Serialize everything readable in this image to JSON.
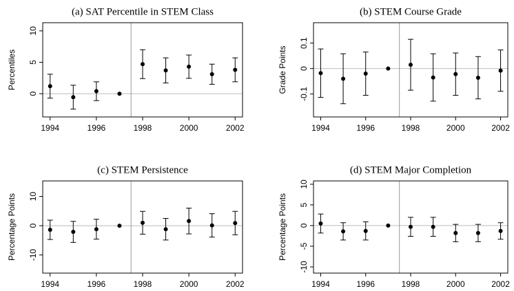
{
  "chart_data": [
    {
      "type": "errorbar",
      "title": "(a) SAT Percentile in STEM Class",
      "y_label": "Percentiles",
      "x": [
        1994,
        1995,
        1996,
        1997,
        1998,
        1999,
        2000,
        2001,
        2002
      ],
      "values": [
        1.2,
        -0.55,
        0.4,
        0,
        4.7,
        3.7,
        4.3,
        3.1,
        3.8
      ],
      "errors": [
        1.9,
        1.9,
        1.5,
        null,
        2.3,
        2.0,
        1.85,
        1.6,
        1.9
      ],
      "xlim": [
        1993.68,
        2002.32
      ],
      "xticks": [
        1994,
        1996,
        1998,
        2000,
        2002
      ],
      "ylim": [
        -3.7,
        11.3
      ],
      "yticks": [
        0,
        5,
        10
      ],
      "hline": 0,
      "vline": 1997.5
    },
    {
      "type": "errorbar",
      "title": "(b) STEM Course Grade",
      "y_label": "Grade Points",
      "x": [
        1994,
        1995,
        1996,
        1997,
        1998,
        1999,
        2000,
        2001,
        2002
      ],
      "values": [
        -0.018,
        -0.04,
        -0.02,
        0,
        0.015,
        -0.035,
        -0.022,
        -0.036,
        -0.008
      ],
      "errors": [
        0.095,
        0.098,
        0.085,
        null,
        0.1,
        0.093,
        0.083,
        0.083,
        0.081
      ],
      "xlim": [
        1993.68,
        2002.32
      ],
      "xticks": [
        1994,
        1996,
        1998,
        2000,
        2002
      ],
      "ylim": [
        -0.19,
        0.18
      ],
      "yticks": [
        -0.1,
        0,
        0.1
      ],
      "hline": 0,
      "vline": 1997.5
    },
    {
      "type": "errorbar",
      "title": "(c) STEM Persistence",
      "y_label": "Percentage Points",
      "x": [
        1994,
        1995,
        1996,
        1997,
        1998,
        1999,
        2000,
        2001,
        2002
      ],
      "values": [
        -1.4,
        -2.1,
        -1.2,
        0,
        1.0,
        -1.2,
        1.6,
        0.1,
        0.9
      ],
      "errors": [
        3.3,
        3.6,
        3.4,
        null,
        3.9,
        3.7,
        4.4,
        4.0,
        4.0
      ],
      "xlim": [
        1993.68,
        2002.32
      ],
      "xticks": [
        1994,
        1996,
        1998,
        2000,
        2002
      ],
      "ylim": [
        -16.2,
        15.3
      ],
      "yticks": [
        -10,
        0,
        10
      ],
      "hline": 0,
      "vline": 1997.5
    },
    {
      "type": "errorbar",
      "title": "(d) STEM Major Completion",
      "y_label": "Percentage Points",
      "x": [
        1994,
        1995,
        1996,
        1997,
        1998,
        1999,
        2000,
        2001,
        2002
      ],
      "values": [
        0.5,
        -1.4,
        -1.3,
        0,
        -0.3,
        -0.3,
        -1.8,
        -1.8,
        -1.3
      ],
      "errors": [
        2.3,
        2.1,
        2.2,
        null,
        2.3,
        2.3,
        2.1,
        2.1,
        2.0
      ],
      "xlim": [
        1993.68,
        2002.32
      ],
      "xticks": [
        1994,
        1996,
        1998,
        2000,
        2002
      ],
      "ylim": [
        -11.5,
        10.8
      ],
      "yticks": [
        -10,
        -5,
        0,
        5,
        10
      ],
      "hline": 0,
      "vline": 1997.5
    }
  ]
}
